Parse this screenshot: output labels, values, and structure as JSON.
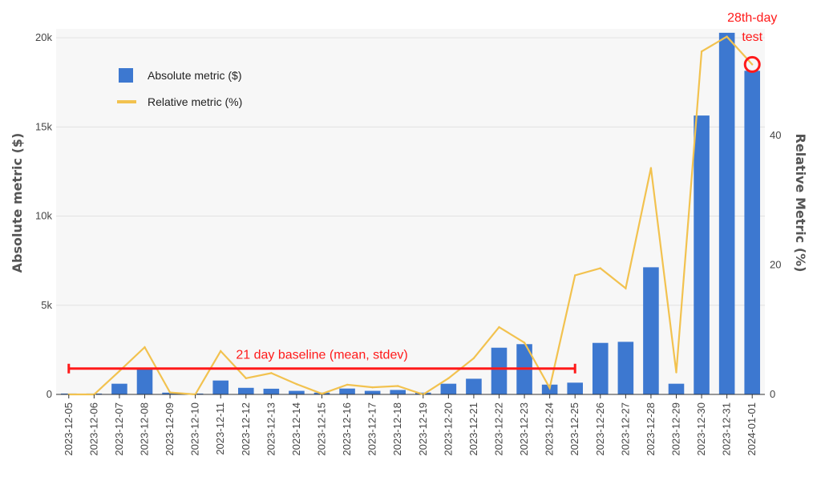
{
  "chart_data": {
    "type": "bar",
    "categories": [
      "2023-12-05",
      "2023-12-06",
      "2023-12-07",
      "2023-12-08",
      "2023-12-09",
      "2023-12-10",
      "2023-12-11",
      "2023-12-12",
      "2023-12-13",
      "2023-12-14",
      "2023-12-15",
      "2023-12-16",
      "2023-12-17",
      "2023-12-18",
      "2023-12-19",
      "2023-12-20",
      "2023-12-21",
      "2023-12-22",
      "2023-12-23",
      "2023-12-24",
      "2023-12-25",
      "2023-12-26",
      "2023-12-27",
      "2023-12-28",
      "2023-12-29",
      "2023-12-30",
      "2023-12-31",
      "2024-01-01"
    ],
    "series": [
      {
        "name": "Absolute metric ($)",
        "type": "bar",
        "axis": "left",
        "color": "#3d78d0",
        "values": [
          50,
          50,
          600,
          1500,
          100,
          50,
          780,
          370,
          320,
          200,
          100,
          330,
          200,
          250,
          100,
          600,
          880,
          2620,
          2820,
          550,
          660,
          2890,
          2950,
          7130,
          600,
          15640,
          20280,
          18150
        ]
      },
      {
        "name": "Relative metric (%)",
        "type": "line",
        "axis": "right",
        "color": "#f2c24f",
        "values": [
          0,
          0,
          3.6,
          7.3,
          0.3,
          0,
          6.7,
          2.5,
          3.3,
          1.6,
          0.1,
          1.5,
          1.1,
          1.3,
          0,
          2.5,
          5.6,
          10.4,
          8.0,
          1.0,
          18.4,
          19.5,
          16.4,
          35.0,
          3.4,
          53.0,
          55.3,
          51.0
        ]
      }
    ],
    "ylabel": "Absolute metric ($)",
    "y2label": "Relative Metric (%)",
    "ylim": [
      0,
      20500
    ],
    "y2lim": [
      0,
      56.5
    ],
    "yticks": [
      {
        "value": 0,
        "label": "0"
      },
      {
        "value": 5000,
        "label": "5k"
      },
      {
        "value": 10000,
        "label": "10k"
      },
      {
        "value": 15000,
        "label": "15k"
      },
      {
        "value": 20000,
        "label": "20k"
      }
    ],
    "y2ticks": [
      {
        "value": 0,
        "label": "0"
      },
      {
        "value": 20,
        "label": "20"
      },
      {
        "value": 40,
        "label": "40"
      }
    ],
    "grid": true,
    "legend_position": "top-left",
    "annotations": {
      "baseline_label": "21 day baseline (mean, stdev)",
      "baseline_start": "2023-12-05",
      "baseline_end": "2023-12-25",
      "baseline_level": 1450,
      "test_label_line1": "28th-day",
      "test_label_line2": "test",
      "test_point": "2024-01-01",
      "color": "#ff1a1a"
    }
  }
}
